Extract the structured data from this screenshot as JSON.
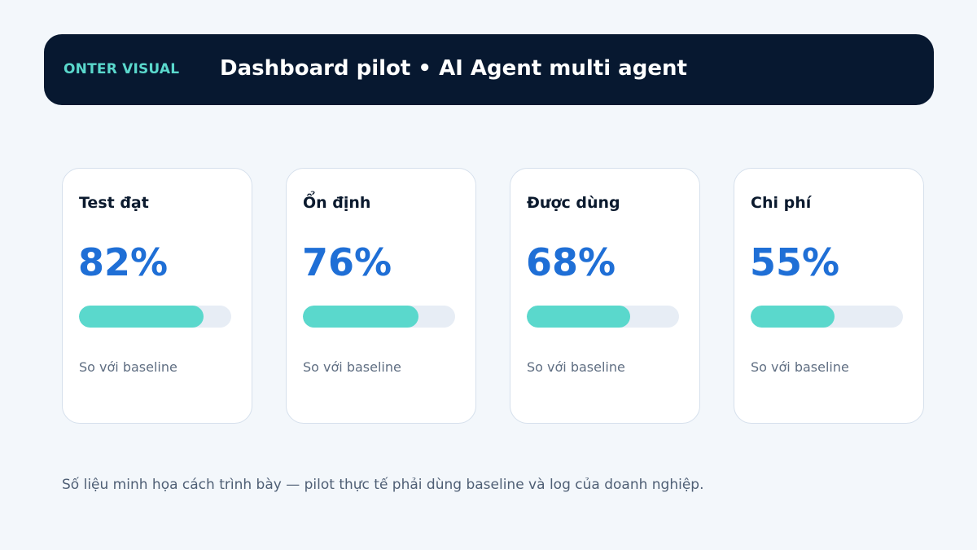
{
  "header": {
    "brand": "ONTER VISUAL",
    "title": "Dashboard pilot • AI Agent multi agent"
  },
  "metrics": [
    {
      "label": "Test đạt",
      "value_text": "82%",
      "progress": 0.82,
      "note": "So với baseline"
    },
    {
      "label": "Ổn định",
      "value_text": "76%",
      "progress": 0.76,
      "note": "So với baseline"
    },
    {
      "label": "Được dùng",
      "value_text": "68%",
      "progress": 0.68,
      "note": "So với baseline"
    },
    {
      "label": "Chi phí",
      "value_text": "55%",
      "progress": 0.55,
      "note": "So với baseline"
    }
  ],
  "footnote": "Số liệu minh họa cách trình bày — pilot thực tế phải dùng baseline và log của doanh nghiệp.",
  "colors": {
    "background": "#f3f7fb",
    "header_bg": "#071830",
    "brand": "#5ad8cc",
    "value": "#1f6fd6",
    "progress_fill": "#5ad8cc",
    "progress_track": "#e7edf5"
  }
}
